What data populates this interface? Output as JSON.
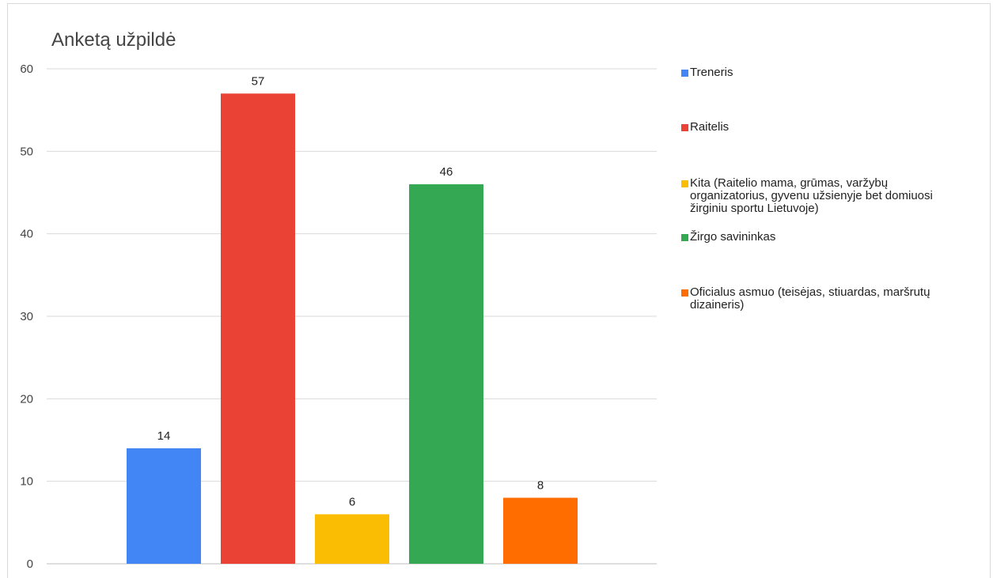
{
  "chart_data": {
    "type": "bar",
    "title": "Anketą užpildė",
    "xlabel": "",
    "ylabel": "",
    "ylim": [
      0,
      60
    ],
    "yticks": [
      0,
      10,
      20,
      30,
      40,
      50,
      60
    ],
    "grid": true,
    "legend_position": "right",
    "series": [
      {
        "name": "Treneris",
        "value": 14,
        "color": "#4285F4"
      },
      {
        "name": "Raitelis",
        "value": 57,
        "color": "#EA4335"
      },
      {
        "name": "Kita (Raitelio mama, grūmas, varžybų organizatorius, gyvenu užsienyje bet domiuosi žirginiu sportu Lietuvoje)",
        "value": 6,
        "color": "#FBBC04"
      },
      {
        "name": "Žirgo savininkas",
        "value": 46,
        "color": "#34A853"
      },
      {
        "name": "Oficialus asmuo (teisėjas, stiuardas, maršrutų dizaineris)",
        "value": 8,
        "color": "#FF6D01"
      }
    ]
  }
}
